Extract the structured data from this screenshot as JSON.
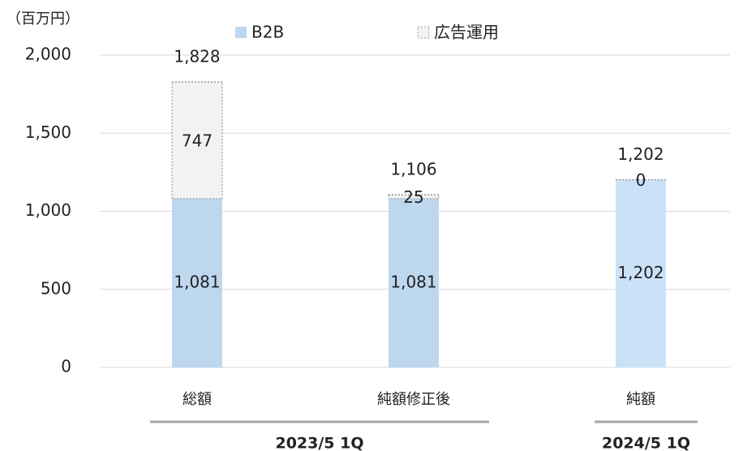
{
  "chart_data": {
    "type": "stacked_bar",
    "unit_label": "（百万円）",
    "categories": [
      "総額",
      "純額修正後",
      "純額"
    ],
    "series": [
      {
        "name": "B2B",
        "color": "#bdd7ee",
        "point_colors": [
          "#bdd7ee",
          "#bdd7ee",
          "#c9e2f8"
        ],
        "values": [
          1081,
          1081,
          1202
        ],
        "value_labels": [
          "1,081",
          "1,081",
          "1,202"
        ]
      },
      {
        "name": "広告運用",
        "color": "#f2f2f2",
        "values": [
          747,
          25,
          0
        ]
      }
    ],
    "totals": [
      1828,
      1106,
      1202
    ],
    "total_labels": [
      "1,828",
      "1,106",
      "1,202"
    ],
    "groups": [
      {
        "label": "2023/5 1Q",
        "categories": [
          0,
          1
        ]
      },
      {
        "label": "2024/5 1Q",
        "categories": [
          2
        ]
      }
    ],
    "ylim": [
      0,
      2000
    ],
    "yticks": [
      0,
      500,
      {
        "value": 1000,
        "label": "1,000"
      },
      {
        "value": 1500,
        "label": "1,500"
      },
      {
        "value": 2000,
        "label": "2,000"
      }
    ],
    "grid": true
  }
}
